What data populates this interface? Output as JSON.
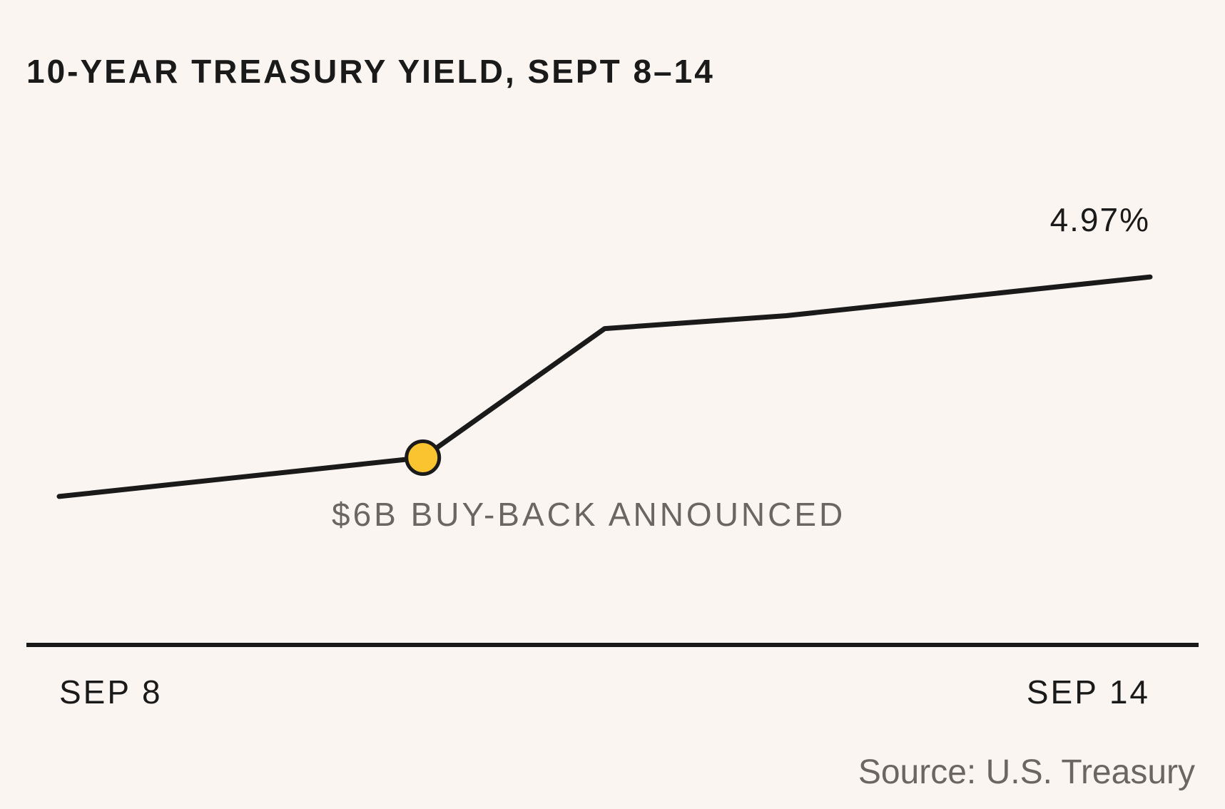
{
  "chart_data": {
    "type": "line",
    "title": "10-YEAR TREASURY YIELD, SEPT 8–14",
    "source": "Source: U.S. Treasury",
    "x_tick_labels": [
      "SEP 8",
      "SEP 14"
    ],
    "x": [
      "2023-09-08",
      "2023-09-09",
      "2023-09-10",
      "2023-09-11",
      "2023-09-12",
      "2023-09-13",
      "2023-09-14"
    ],
    "series": [
      {
        "values": [
          4.63,
          4.66,
          4.69,
          4.89,
          4.91,
          4.94,
          4.97
        ]
      }
    ],
    "end_label": "4.97%",
    "annotation": {
      "text": "$6B BUY-BACK ANNOUNCED",
      "x_index": 2
    },
    "ylim": [
      4.4,
      5.2
    ],
    "grid": false,
    "legend": "none",
    "colors": {
      "background": "#FBF5F1",
      "line": "#1a1a1a",
      "marker_fill": "#F9C430",
      "annotation_text": "#6b6661"
    }
  }
}
